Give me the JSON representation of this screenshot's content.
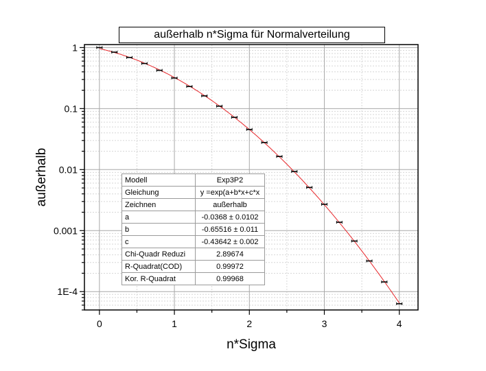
{
  "chart_data": {
    "type": "scatter",
    "title": "außerhalb n*Sigma für Normalverteilung",
    "xlabel": "n*Sigma",
    "ylabel": "außerhalb",
    "xlim": [
      -0.2,
      4.25
    ],
    "ylim": [
      5e-05,
      1.12
    ],
    "y_scale": "log",
    "grid": true,
    "x_ticks": [
      0,
      1,
      2,
      3,
      4
    ],
    "y_ticks": [
      {
        "value": 1,
        "label": "1"
      },
      {
        "value": 0.1,
        "label": "0.1"
      },
      {
        "value": 0.01,
        "label": "0.01"
      },
      {
        "value": 0.001,
        "label": "0.001"
      },
      {
        "value": 0.0001,
        "label": "1E-4"
      }
    ],
    "series": [
      {
        "kind": "data",
        "x": [
          0,
          0.2,
          0.4,
          0.6,
          0.8,
          1.0,
          1.2,
          1.4,
          1.6,
          1.8,
          2.0,
          2.2,
          2.4,
          2.6,
          2.8,
          3.0,
          3.2,
          3.4,
          3.6,
          3.8,
          4.0
        ],
        "y": [
          1.0,
          0.8415,
          0.6892,
          0.5485,
          0.4237,
          0.3173,
          0.2301,
          0.1615,
          0.1096,
          0.0719,
          0.0455,
          0.0278,
          0.0164,
          0.0093,
          0.0051,
          0.0027,
          0.00137,
          0.000674,
          0.000318,
          0.000144,
          6.33e-05
        ],
        "color": "#000000"
      },
      {
        "kind": "fit",
        "model": "exp(a+b*x+c*x^2)",
        "a": -0.0368,
        "b": -0.65516,
        "c": -0.43642,
        "color": "#e8262a"
      }
    ],
    "fit_table": {
      "rows": [
        {
          "label": "Modell",
          "value": "Exp3P2"
        },
        {
          "label": "Gleichung",
          "value": "y =exp(a+b*x+c*x"
        },
        {
          "label": "Zeichnen",
          "value": "außerhalb"
        },
        {
          "label": "a",
          "value": "-0.0368 ± 0.0102"
        },
        {
          "label": "b",
          "value": "-0.65516 ± 0.011"
        },
        {
          "label": "c",
          "value": "-0.43642 ± 0.002"
        },
        {
          "label": "Chi-Quadr Reduzi",
          "value": "2.89674"
        },
        {
          "label": "R-Quadrat(COD)",
          "value": "0.99972"
        },
        {
          "label": "Kor. R-Quadrat",
          "value": "0.99968"
        }
      ]
    }
  }
}
